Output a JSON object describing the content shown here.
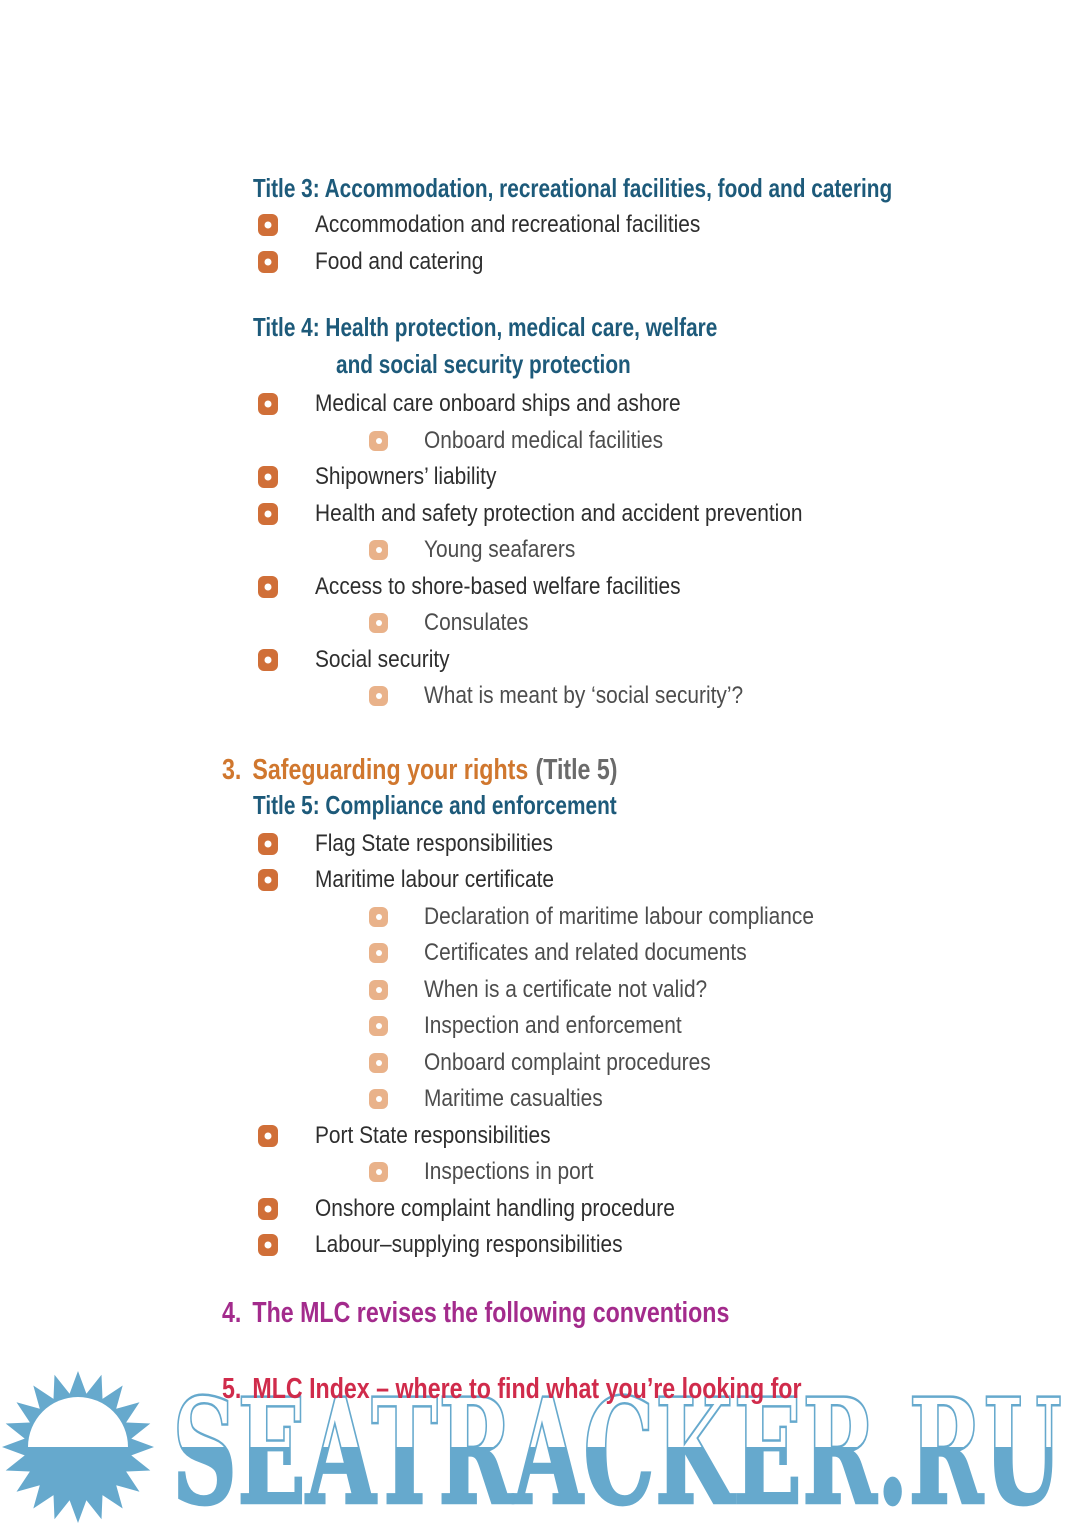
{
  "colors": {
    "title_blue": "#1d5a7a",
    "section_orange": "#d0772e",
    "section_gray": "#6b6b6b",
    "section_purple": "#a32b8c",
    "section_red": "#d02b4b",
    "bullet_l1": "#d06f38",
    "bullet_l2": "#e9b28a",
    "body_text": "#2e2e2e",
    "sub_text": "#4d4d4d",
    "watermark_blue": "#66a9cd"
  },
  "toc": {
    "title3_heading": "Title 3: Accommodation, recreational facilities, food and catering",
    "title3_items": [
      {
        "level": 1,
        "label": "Accommodation and recreational facilities"
      },
      {
        "level": 1,
        "label": "Food and catering"
      }
    ],
    "title4_heading_line1": "Title 4: Health protection, medical care, welfare",
    "title4_heading_line2": "and social security protection",
    "title4_items": [
      {
        "level": 1,
        "label": "Medical care onboard ships and ashore"
      },
      {
        "level": 2,
        "label": "Onboard medical facilities"
      },
      {
        "level": 1,
        "label": "Shipowners’ liability"
      },
      {
        "level": 1,
        "label": "Health and safety protection and accident prevention"
      },
      {
        "level": 2,
        "label": "Young seafarers"
      },
      {
        "level": 1,
        "label": "Access to shore-based welfare facilities"
      },
      {
        "level": 2,
        "label": "Consulates"
      },
      {
        "level": 1,
        "label": "Social security"
      },
      {
        "level": 2,
        "label": "What is meant by ‘social security’?"
      }
    ],
    "section3": {
      "number": "3.",
      "title": "Safeguarding your rights",
      "suffix": "(Title 5)"
    },
    "title5_heading": "Title 5: Compliance and enforcement",
    "title5_items": [
      {
        "level": 1,
        "label": "Flag State responsibilities"
      },
      {
        "level": 1,
        "label": "Maritime labour certificate"
      },
      {
        "level": 2,
        "label": "Declaration of maritime labour compliance"
      },
      {
        "level": 2,
        "label": "Certificates and related documents"
      },
      {
        "level": 2,
        "label": "When is a certificate not valid?"
      },
      {
        "level": 2,
        "label": "Inspection and enforcement"
      },
      {
        "level": 2,
        "label": "Onboard complaint procedures"
      },
      {
        "level": 2,
        "label": "Maritime casualties"
      },
      {
        "level": 1,
        "label": "Port State responsibilities"
      },
      {
        "level": 2,
        "label": "Inspections in port"
      },
      {
        "level": 1,
        "label": "Onshore complaint handling procedure"
      },
      {
        "level": 1,
        "label": "Labour–supplying responsibilities"
      }
    ],
    "section4": {
      "number": "4.",
      "title": "The MLC revises the following conventions"
    },
    "section5": {
      "number": "5.",
      "title": "MLC Index – where to find what you’re looking for"
    }
  },
  "watermark": {
    "text": "SEATRACKER.RU"
  }
}
